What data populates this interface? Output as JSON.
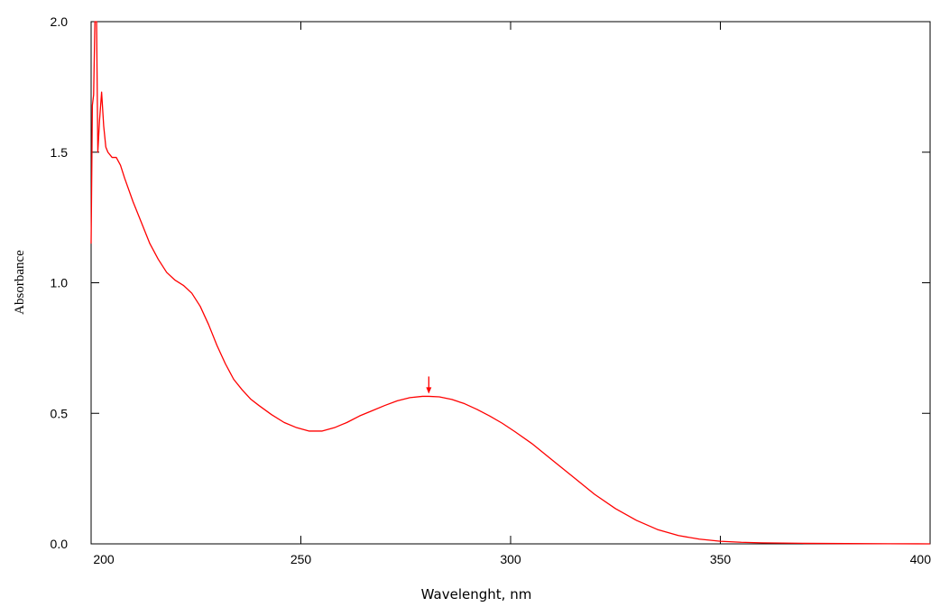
{
  "chart_data": {
    "type": "line",
    "title": "",
    "xlabel": "Wavelenght, nm",
    "ylabel": "Absorbance",
    "xlim": [
      200,
      400
    ],
    "ylim": [
      0.0,
      2.0
    ],
    "x_ticks": [
      200,
      250,
      300,
      350,
      400
    ],
    "x_tick_labels": [
      "200",
      "250",
      "300",
      "350",
      "400"
    ],
    "y_ticks": [
      0.0,
      0.5,
      1.0,
      1.5,
      2.0
    ],
    "y_tick_labels": [
      "0.0",
      "0.5",
      "1.0",
      "1.5",
      "2.0"
    ],
    "grid": false,
    "line_color": "#ff0000",
    "series": [
      {
        "x": [
          200,
          200.3,
          200.6,
          200.9,
          201.3,
          201.6,
          202,
          202.5,
          203,
          203.5,
          204,
          205,
          206,
          207,
          208,
          210,
          212,
          214,
          216,
          218,
          220,
          222,
          224,
          226,
          228,
          230,
          232,
          234,
          236,
          238,
          240,
          243,
          246,
          249,
          252,
          255,
          258,
          261,
          264,
          267,
          270,
          273,
          276,
          279,
          280.5,
          283,
          286,
          289,
          292,
          295,
          298,
          301,
          305,
          310,
          315,
          320,
          325,
          330,
          335,
          340,
          345,
          350,
          355,
          360,
          370,
          380,
          390,
          400
        ],
        "y": [
          1.15,
          1.68,
          1.72,
          2.0,
          2.0,
          1.5,
          1.62,
          1.73,
          1.6,
          1.52,
          1.5,
          1.48,
          1.48,
          1.45,
          1.4,
          1.31,
          1.23,
          1.15,
          1.09,
          1.04,
          1.01,
          0.99,
          0.96,
          0.91,
          0.84,
          0.76,
          0.69,
          0.63,
          0.59,
          0.555,
          0.53,
          0.495,
          0.465,
          0.445,
          0.432,
          0.432,
          0.445,
          0.465,
          0.49,
          0.51,
          0.53,
          0.548,
          0.56,
          0.565,
          0.565,
          0.563,
          0.553,
          0.537,
          0.515,
          0.49,
          0.462,
          0.43,
          0.385,
          0.32,
          0.255,
          0.19,
          0.135,
          0.09,
          0.055,
          0.032,
          0.018,
          0.01,
          0.006,
          0.004,
          0.002,
          0.001,
          0.0005,
          0.0
        ]
      }
    ],
    "annotations": [
      {
        "type": "arrow-marker",
        "x": 280.5,
        "y": 0.565
      }
    ]
  }
}
